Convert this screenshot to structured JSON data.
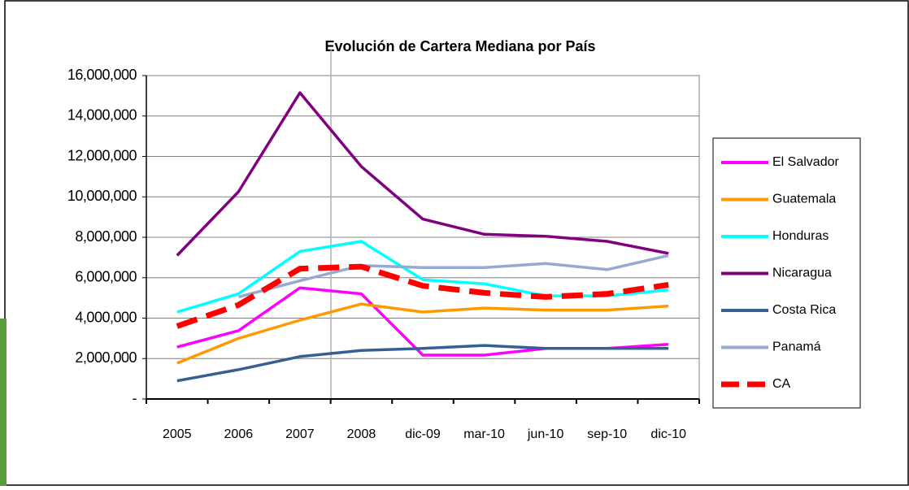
{
  "chart_data": {
    "type": "line",
    "title": "Evolución de Cartera Mediana por País",
    "categories": [
      "2005",
      "2006",
      "2007",
      "2008",
      "dic-09",
      "mar-10",
      "jun-10",
      "sep-10",
      "dic-10"
    ],
    "series": [
      {
        "name": "El Salvador",
        "color": "#ff00ff",
        "values": [
          2570000,
          3380000,
          5500000,
          5200000,
          2170000,
          2170000,
          2500000,
          2500000,
          2700000
        ]
      },
      {
        "name": "Guatemala",
        "color": "#ff9900",
        "values": [
          1770000,
          3000000,
          3900000,
          4700000,
          4300000,
          4500000,
          4400000,
          4400000,
          4600000
        ]
      },
      {
        "name": "Honduras",
        "color": "#00ffff",
        "values": [
          4300000,
          5200000,
          7300000,
          7800000,
          5900000,
          5700000,
          5100000,
          5100000,
          5400000
        ]
      },
      {
        "name": "Nicaragua",
        "color": "#800080",
        "values": [
          7100000,
          10250000,
          15150000,
          11500000,
          8900000,
          8150000,
          8050000,
          7800000,
          7200000
        ]
      },
      {
        "name": "Costa Rica",
        "color": "#366092",
        "values": [
          900000,
          1450000,
          2100000,
          2400000,
          2500000,
          2650000,
          2500000,
          2500000,
          2500000
        ]
      },
      {
        "name": "Panamá",
        "color": "#95a9d3",
        "values": [
          null,
          5050000,
          5850000,
          6600000,
          6500000,
          6500000,
          6700000,
          6400000,
          7100000
        ]
      },
      {
        "name": "CA",
        "color": "#ff0000",
        "dashed": true,
        "values": [
          3600000,
          4650000,
          6450000,
          6550000,
          5600000,
          5250000,
          5050000,
          5200000,
          5650000
        ]
      }
    ],
    "ylim": [
      0,
      16000000
    ],
    "yticks": [
      {
        "value": 0,
        "label": "-"
      },
      {
        "value": 2000000,
        "label": "2,000,000"
      },
      {
        "value": 4000000,
        "label": "4,000,000"
      },
      {
        "value": 6000000,
        "label": "6,000,000"
      },
      {
        "value": 8000000,
        "label": "8,000,000"
      },
      {
        "value": 10000000,
        "label": "10,000,000"
      },
      {
        "value": 12000000,
        "label": "12,000,000"
      },
      {
        "value": 14000000,
        "label": "14,000,000"
      },
      {
        "value": 16000000,
        "label": "16,000,000"
      }
    ],
    "grid": true,
    "legend": "right"
  }
}
